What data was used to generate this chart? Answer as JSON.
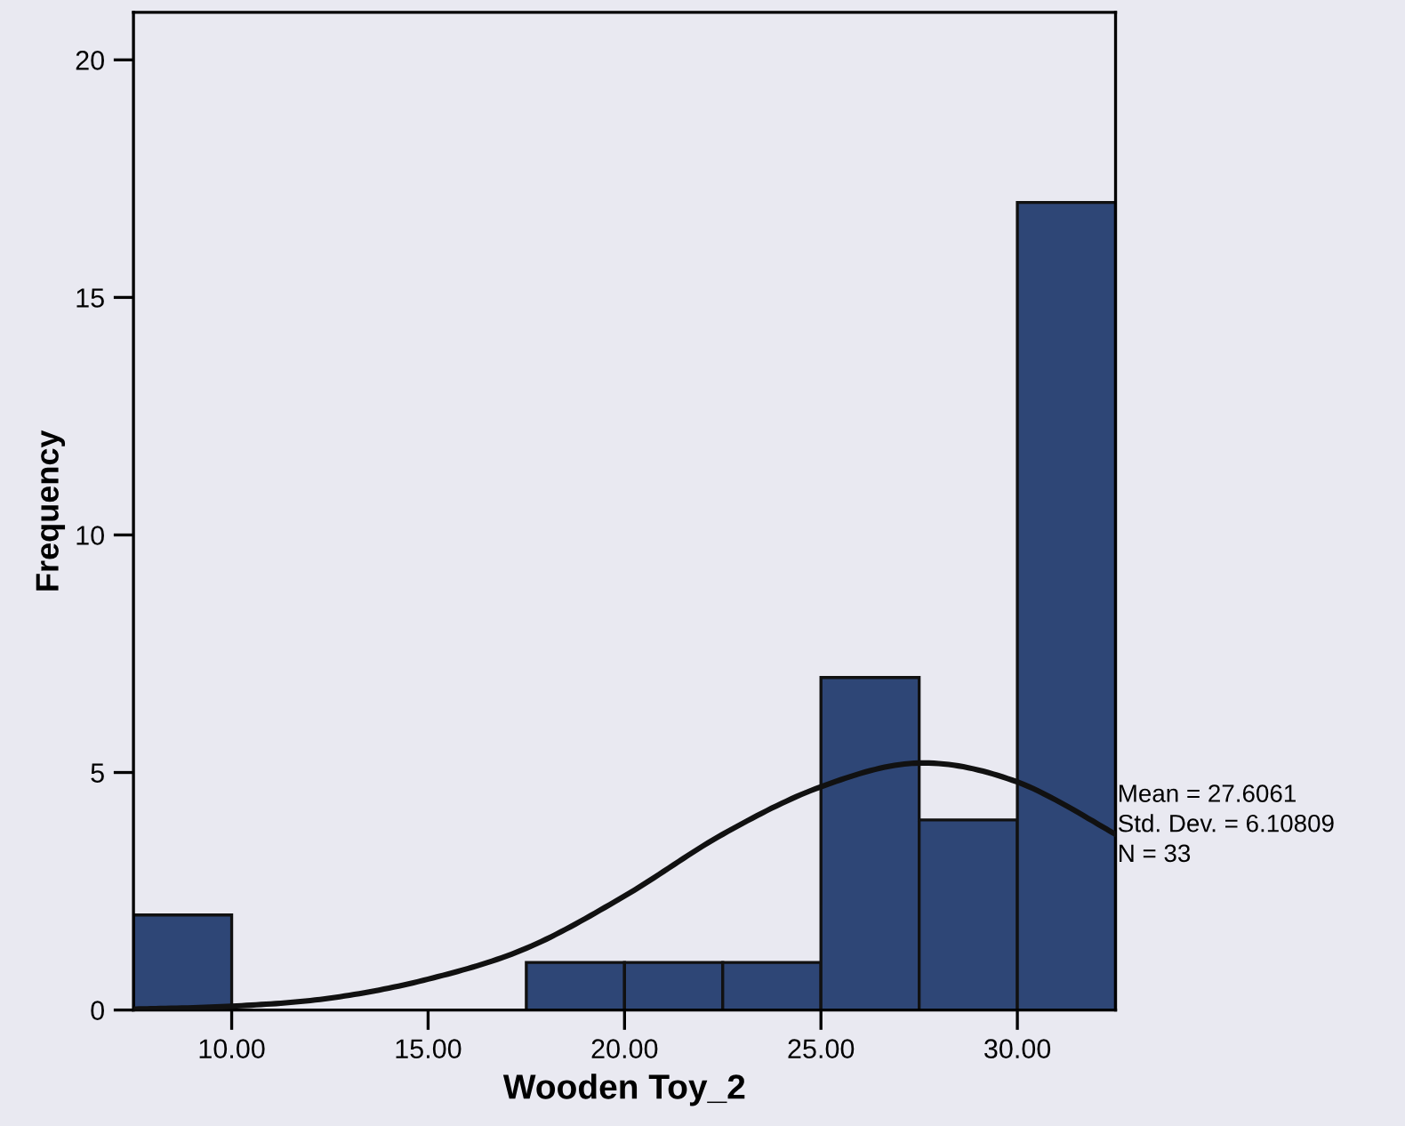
{
  "chart_data": {
    "type": "histogram",
    "xlabel": "Wooden Toy_2",
    "ylabel": "Frequency",
    "bins": [
      7.5,
      10,
      12.5,
      15,
      17.5,
      20,
      22.5,
      25,
      27.5,
      30,
      32.5
    ],
    "series": [
      {
        "color": "#2e4676",
        "values": [
          2,
          0,
          0,
          0,
          1,
          1,
          1,
          7,
          4,
          17
        ]
      },
      {
        "type": "line",
        "color": "#111111",
        "x": [
          7.5,
          10,
          12.5,
          15,
          17.5,
          20,
          22.5,
          25,
          27.5,
          30,
          32.5
        ],
        "values": [
          0.02,
          0.08,
          0.25,
          0.65,
          1.3,
          2.4,
          3.7,
          4.7,
          5.2,
          4.8,
          3.7
        ]
      }
    ],
    "xlim": [
      7.5,
      32.5
    ],
    "xticks": [
      {
        "value": 10,
        "label": "10.00"
      },
      {
        "value": 15,
        "label": "15.00"
      },
      {
        "value": 20,
        "label": "20.00"
      },
      {
        "value": 25,
        "label": "25.00"
      },
      {
        "value": 30,
        "label": "30.00"
      }
    ],
    "ylim": [
      0,
      21
    ],
    "yticks": [
      0,
      5,
      10,
      15,
      20
    ],
    "annotations": [
      "Mean = 27.6061",
      "Std. Dev. = 6.10809",
      "N = 33"
    ],
    "grid": false,
    "legend": false,
    "marker": "none",
    "line_style": "solid"
  }
}
